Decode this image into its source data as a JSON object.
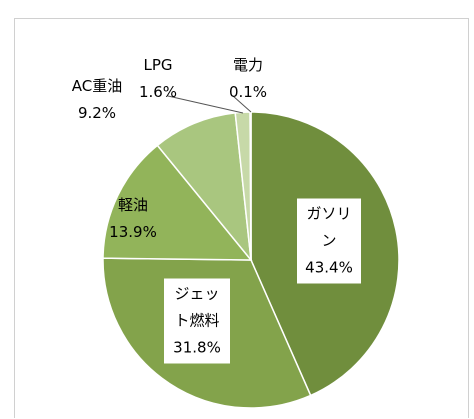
{
  "chart_data": {
    "type": "pie",
    "categories": [
      "ガソリン",
      "ジェット燃料",
      "軽油",
      "AC重油",
      "LPG",
      "電力"
    ],
    "values": [
      43.4,
      31.8,
      13.9,
      9.2,
      1.6,
      0.1
    ],
    "value_labels": [
      "43.4%",
      "31.8%",
      "13.9%",
      "9.2%",
      "1.6%",
      "0.1%"
    ],
    "colors": [
      "#708e3d",
      "#83a34b",
      "#92b45a",
      "#a9c67f",
      "#c7d9a8",
      "#dfe9cf"
    ]
  }
}
